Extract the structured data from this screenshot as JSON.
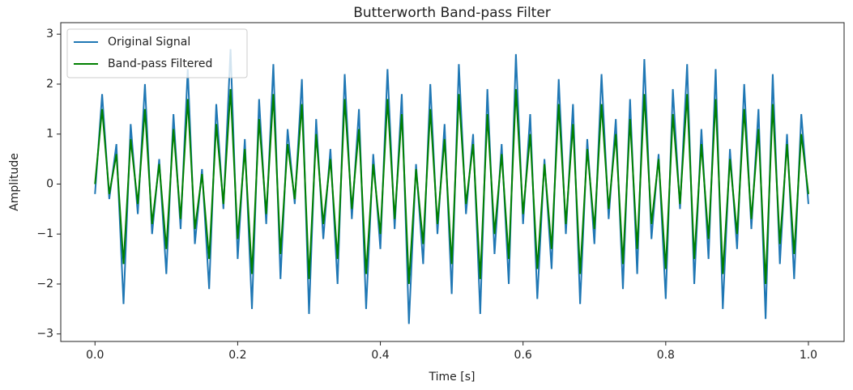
{
  "chart_data": {
    "type": "line",
    "title": "Butterworth Band-pass Filter",
    "xlabel": "Time [s]",
    "ylabel": "Amplitude",
    "x": [
      0,
      0.01,
      0.02,
      0.03,
      0.04,
      0.05,
      0.06,
      0.07,
      0.08,
      0.09,
      0.1,
      0.11,
      0.12,
      0.13,
      0.14,
      0.15,
      0.16,
      0.17,
      0.18,
      0.19,
      0.2,
      0.21,
      0.22,
      0.23,
      0.24,
      0.25,
      0.26,
      0.27,
      0.28,
      0.29,
      0.3,
      0.31,
      0.32,
      0.33,
      0.34,
      0.35,
      0.36,
      0.37,
      0.38,
      0.39,
      0.4,
      0.41,
      0.42,
      0.43,
      0.44,
      0.45,
      0.46,
      0.47,
      0.48,
      0.49,
      0.5,
      0.51,
      0.52,
      0.53,
      0.54,
      0.55,
      0.56,
      0.57,
      0.58,
      0.59,
      0.6,
      0.61,
      0.62,
      0.63,
      0.64,
      0.65,
      0.66,
      0.67,
      0.68,
      0.69,
      0.7,
      0.71,
      0.72,
      0.73,
      0.74,
      0.75,
      0.76,
      0.77,
      0.78,
      0.79,
      0.8,
      0.81,
      0.82,
      0.83,
      0.84,
      0.85,
      0.86,
      0.87,
      0.88,
      0.89,
      0.9,
      0.91,
      0.92,
      0.93,
      0.94,
      0.95,
      0.96,
      0.97,
      0.98,
      0.99,
      1
    ],
    "series": [
      {
        "name": "Original Signal",
        "color": "#1f77b4",
        "values": [
          -0.2,
          1.8,
          -0.3,
          0.8,
          -2.4,
          1.2,
          -0.6,
          2.0,
          -1.0,
          0.5,
          -1.8,
          1.4,
          -0.9,
          2.3,
          -1.2,
          0.3,
          -2.1,
          1.6,
          -0.5,
          2.7,
          -1.5,
          0.9,
          -2.5,
          1.7,
          -0.8,
          2.4,
          -1.9,
          1.1,
          -0.4,
          2.1,
          -2.6,
          1.3,
          -1.1,
          0.7,
          -2.0,
          2.2,
          -0.7,
          1.5,
          -2.5,
          0.6,
          -1.3,
          2.3,
          -0.9,
          1.8,
          -2.8,
          0.4,
          -1.6,
          2.0,
          -1.0,
          1.2,
          -2.2,
          2.4,
          -0.6,
          1.0,
          -2.6,
          1.9,
          -1.4,
          0.8,
          -2.0,
          2.6,
          -0.8,
          1.4,
          -2.3,
          0.5,
          -1.7,
          2.1,
          -1.0,
          1.6,
          -2.4,
          0.9,
          -1.2,
          2.2,
          -0.7,
          1.3,
          -2.1,
          1.7,
          -1.8,
          2.5,
          -1.1,
          0.6,
          -2.3,
          1.9,
          -0.5,
          2.4,
          -2.0,
          1.1,
          -1.5,
          2.3,
          -2.5,
          0.7,
          -1.3,
          2.0,
          -0.9,
          1.5,
          -2.7,
          2.2,
          -1.6,
          1.0,
          -1.9,
          1.4,
          -0.4
        ]
      },
      {
        "name": "Band-pass Filtered",
        "color": "#008000",
        "values": [
          0,
          1.5,
          -0.2,
          0.6,
          -1.6,
          0.9,
          -0.4,
          1.5,
          -0.8,
          0.4,
          -1.3,
          1.1,
          -0.7,
          1.7,
          -0.9,
          0.2,
          -1.5,
          1.2,
          -0.4,
          1.9,
          -1.1,
          0.7,
          -1.8,
          1.3,
          -0.6,
          1.8,
          -1.4,
          0.8,
          -0.3,
          1.6,
          -1.9,
          1.0,
          -0.8,
          0.5,
          -1.5,
          1.7,
          -0.5,
          1.1,
          -1.8,
          0.4,
          -1.0,
          1.7,
          -0.7,
          1.4,
          -2.0,
          0.3,
          -1.2,
          1.5,
          -0.8,
          0.9,
          -1.6,
          1.8,
          -0.4,
          0.8,
          -1.9,
          1.4,
          -1.0,
          0.6,
          -1.5,
          1.9,
          -0.6,
          1.0,
          -1.7,
          0.4,
          -1.3,
          1.6,
          -0.8,
          1.2,
          -1.8,
          0.7,
          -0.9,
          1.6,
          -0.5,
          1.0,
          -1.6,
          1.3,
          -1.3,
          1.8,
          -0.8,
          0.5,
          -1.7,
          1.4,
          -0.4,
          1.8,
          -1.5,
          0.8,
          -1.1,
          1.7,
          -1.8,
          0.5,
          -1.0,
          1.5,
          -0.7,
          1.1,
          -2.0,
          1.6,
          -1.2,
          0.8,
          -1.4,
          1.0,
          -0.2
        ]
      }
    ],
    "xlim": [
      -0.048,
      1.05
    ],
    "ylim": [
      -3.15,
      3.23
    ],
    "xticks": [
      {
        "value": 0,
        "label": "0.0"
      },
      {
        "value": 0.2,
        "label": "0.2"
      },
      {
        "value": 0.4,
        "label": "0.4"
      },
      {
        "value": 0.6,
        "label": "0.6"
      },
      {
        "value": 0.8,
        "label": "0.8"
      },
      {
        "value": 1,
        "label": "1.0"
      }
    ],
    "yticks": [
      {
        "value": -3,
        "label": "−3"
      },
      {
        "value": -2,
        "label": "−2"
      },
      {
        "value": -1,
        "label": "−1"
      },
      0,
      1,
      2,
      3
    ],
    "legend": "upper left"
  }
}
